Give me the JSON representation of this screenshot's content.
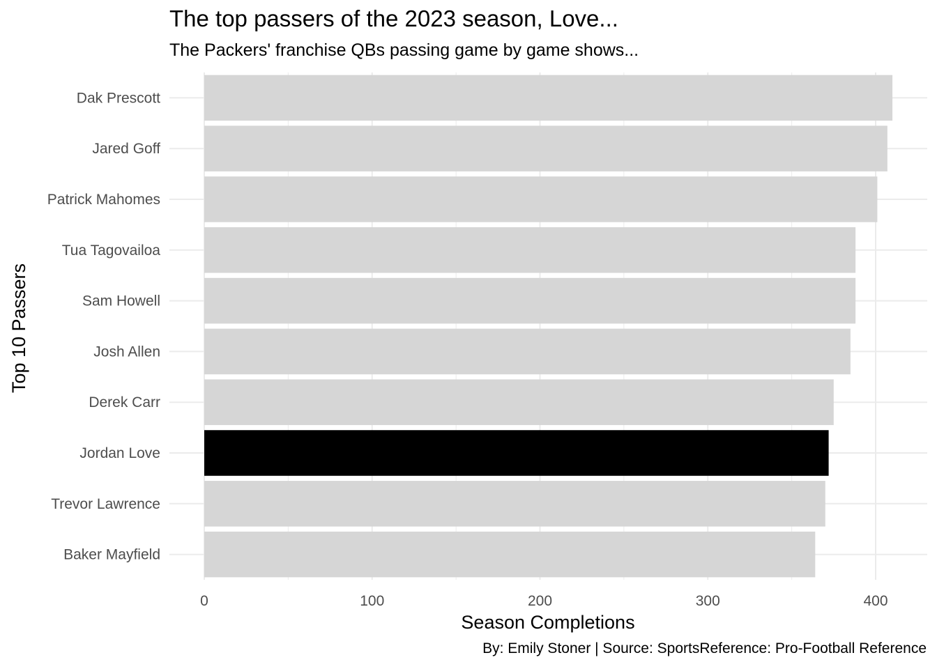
{
  "title": "The top passers of the 2023 season, Love...",
  "subtitle": "The Packers' franchise QBs passing game by game shows...",
  "caption": "By: Emily Stoner | Source: SportsReference: Pro-Football Reference",
  "chart_data": {
    "type": "bar",
    "orientation": "horizontal",
    "xlabel": "Season Completions",
    "ylabel": "Top 10 Passers",
    "xlim": [
      0,
      420
    ],
    "xticks": [
      0,
      100,
      200,
      300,
      400
    ],
    "grid": true,
    "categories": [
      "Dak Prescott",
      "Jared Goff",
      "Patrick Mahomes",
      "Tua Tagovailoa",
      "Sam Howell",
      "Josh Allen",
      "Derek Carr",
      "Jordan Love",
      "Trevor Lawrence",
      "Baker Mayfield"
    ],
    "values": [
      410,
      407,
      401,
      388,
      388,
      385,
      375,
      372,
      370,
      364
    ],
    "highlight": "Jordan Love",
    "colors": {
      "default": "#d6d6d6",
      "highlight": "#000000",
      "grid": "#ebebeb"
    }
  }
}
